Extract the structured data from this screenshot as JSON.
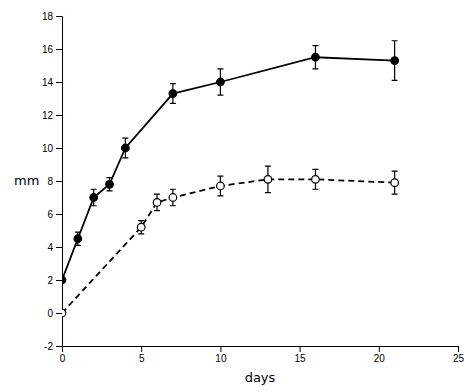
{
  "chart_data": {
    "type": "line",
    "xlabel": "days",
    "ylabel": "mm",
    "xlim": [
      0,
      25
    ],
    "ylim": [
      -2,
      18
    ],
    "xticks": [
      0,
      5,
      10,
      15,
      20,
      25
    ],
    "yticks": [
      -2,
      0,
      2,
      4,
      6,
      8,
      10,
      12,
      14,
      16,
      18
    ],
    "grid": false,
    "series": [
      {
        "x": [
          0,
          1,
          2,
          3,
          4,
          7,
          10,
          16,
          21
        ],
        "values": [
          2.0,
          4.5,
          7.0,
          7.8,
          10.0,
          13.3,
          14.0,
          15.5,
          15.3
        ],
        "errors": [
          0.1,
          0.4,
          0.5,
          0.4,
          0.6,
          0.6,
          0.8,
          0.7,
          1.2
        ],
        "color": "black",
        "marker": "circle",
        "line_style": "solid"
      },
      {
        "x": [
          0,
          5,
          6,
          7,
          10,
          13,
          16,
          21
        ],
        "values": [
          0.0,
          5.2,
          6.7,
          7.0,
          7.7,
          8.1,
          8.1,
          7.9
        ],
        "errors": [
          0.1,
          0.4,
          0.5,
          0.5,
          0.6,
          0.8,
          0.6,
          0.7
        ],
        "color": "black",
        "marker": "open-circle",
        "line_style": "dashed"
      }
    ]
  }
}
